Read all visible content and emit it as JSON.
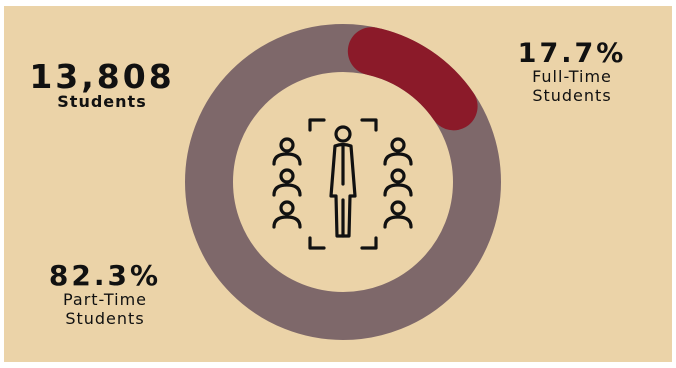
{
  "colors": {
    "background": "#ebd3a8",
    "part_time": "#7e686a",
    "full_time": "#8b1a29",
    "icon": "#111111"
  },
  "icon": "group-of-people-with-highlighted-person-icon",
  "stats": {
    "total_value": "13,808",
    "total_label": "Students",
    "full_time_value": "17.7%",
    "full_time_label_1": "Full-Time",
    "full_time_label_2": "Students",
    "part_time_value": "82.3%",
    "part_time_label_1": "Part-Time",
    "part_time_label_2": "Students"
  },
  "chart_data": {
    "type": "pie",
    "subtype": "donut",
    "total": 13808,
    "unit": "percent",
    "slices": [
      {
        "label": "Full-Time Students",
        "value": 17.7,
        "color": "#8b1a29"
      },
      {
        "label": "Part-Time Students",
        "value": 82.3,
        "color": "#7e686a"
      }
    ]
  }
}
